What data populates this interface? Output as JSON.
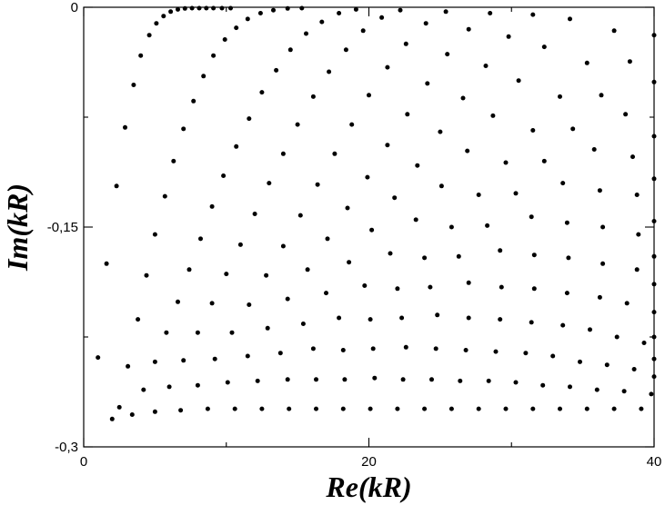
{
  "chart_data": {
    "type": "scatter",
    "xlabel": "Re(kR)",
    "ylabel": "Im(kR)",
    "xlim": [
      0,
      40
    ],
    "ylim": [
      -0.3,
      0
    ],
    "x_ticks": [
      {
        "value": 0,
        "label": "0"
      },
      {
        "value": 20,
        "label": "20"
      },
      {
        "value": 40,
        "label": "40"
      }
    ],
    "y_ticks": [
      {
        "value": 0,
        "label": "0"
      },
      {
        "value": -0.15,
        "label": "-0,15"
      },
      {
        "value": -0.3,
        "label": "-0,3"
      }
    ],
    "x_minor_ticks": [
      10,
      30
    ],
    "y_minor_ticks": [
      -0.075,
      -0.225
    ],
    "grid": false,
    "marker": "dot",
    "color": "#000000",
    "series": [
      {
        "x": [
          1.0,
          1.6,
          2.3,
          2.9,
          3.5,
          4.0,
          4.6,
          5.1,
          5.6,
          6.1,
          6.6,
          7.1,
          7.6,
          8.1,
          8.6,
          9.1,
          9.7,
          10.3
        ],
        "y": [
          -0.239,
          -0.175,
          -0.122,
          -0.082,
          -0.053,
          -0.033,
          -0.019,
          -0.011,
          -0.006,
          -0.003,
          -0.0015,
          -0.0008,
          -0.0004,
          -0.0002,
          -0.0001,
          0,
          0,
          0
        ]
      },
      {
        "x": [
          2.0,
          2.5,
          3.1,
          3.8,
          4.4,
          5.0,
          5.7,
          6.3,
          7.0,
          7.7,
          8.4,
          9.1,
          9.9,
          10.7,
          11.5,
          12.4,
          13.3,
          14.3,
          15.3
        ],
        "y": [
          -0.281,
          -0.273,
          -0.245,
          -0.213,
          -0.183,
          -0.155,
          -0.129,
          -0.105,
          -0.083,
          -0.064,
          -0.047,
          -0.033,
          -0.022,
          -0.014,
          -0.008,
          -0.004,
          -0.002,
          -0.0008,
          -0.0003
        ]
      },
      {
        "x": [
          3.4,
          4.2,
          5.0,
          5.8,
          6.6,
          7.4,
          8.2,
          9.0,
          9.8,
          10.7,
          11.6,
          12.5,
          13.5,
          14.5,
          15.6,
          16.7,
          17.9,
          19.1
        ],
        "y": [
          -0.278,
          -0.261,
          -0.242,
          -0.222,
          -0.201,
          -0.179,
          -0.158,
          -0.136,
          -0.115,
          -0.095,
          -0.076,
          -0.058,
          -0.043,
          -0.029,
          -0.018,
          -0.01,
          -0.004,
          -0.0015
        ]
      },
      {
        "x": [
          5.0,
          6.0,
          7.0,
          8.0,
          9.0,
          10.0,
          11.0,
          12.0,
          13.0,
          14.0,
          15.0,
          16.1,
          17.2,
          18.4,
          19.6,
          20.9,
          22.2
        ],
        "y": [
          -0.276,
          -0.259,
          -0.241,
          -0.222,
          -0.202,
          -0.182,
          -0.162,
          -0.141,
          -0.12,
          -0.1,
          -0.08,
          -0.061,
          -0.044,
          -0.029,
          -0.016,
          -0.007,
          -0.002
        ]
      },
      {
        "x": [
          6.8,
          8.0,
          9.2,
          10.4,
          11.6,
          12.8,
          14.0,
          15.2,
          16.4,
          17.6,
          18.8,
          20.0,
          21.3,
          22.6,
          24.0,
          25.4
        ],
        "y": [
          -0.275,
          -0.258,
          -0.24,
          -0.222,
          -0.203,
          -0.183,
          -0.163,
          -0.142,
          -0.121,
          -0.1,
          -0.08,
          -0.06,
          -0.041,
          -0.025,
          -0.011,
          -0.003
        ]
      },
      {
        "x": [
          8.7,
          10.1,
          11.5,
          12.9,
          14.3,
          15.7,
          17.1,
          18.5,
          19.9,
          21.3,
          22.7,
          24.1,
          25.5,
          27.0,
          28.5
        ],
        "y": [
          -0.274,
          -0.256,
          -0.238,
          -0.219,
          -0.199,
          -0.179,
          -0.158,
          -0.137,
          -0.116,
          -0.094,
          -0.073,
          -0.052,
          -0.032,
          -0.015,
          -0.004
        ]
      },
      {
        "x": [
          10.6,
          12.2,
          13.8,
          15.4,
          17.0,
          18.6,
          20.2,
          21.8,
          23.4,
          25.0,
          26.6,
          28.2,
          29.8,
          31.5
        ],
        "y": [
          -0.274,
          -0.255,
          -0.236,
          -0.216,
          -0.195,
          -0.174,
          -0.152,
          -0.13,
          -0.108,
          -0.085,
          -0.062,
          -0.04,
          -0.02,
          -0.005
        ]
      },
      {
        "x": [
          12.5,
          14.3,
          16.1,
          17.9,
          19.7,
          21.5,
          23.3,
          25.1,
          26.9,
          28.7,
          30.5,
          32.3,
          34.1
        ],
        "y": [
          -0.274,
          -0.254,
          -0.233,
          -0.212,
          -0.19,
          -0.168,
          -0.145,
          -0.122,
          -0.098,
          -0.074,
          -0.05,
          -0.027,
          -0.008
        ]
      },
      {
        "x": [
          14.4,
          16.3,
          18.2,
          20.1,
          22.0,
          23.9,
          25.8,
          27.7,
          29.6,
          31.5,
          33.4,
          35.3,
          37.2
        ],
        "y": [
          -0.274,
          -0.254,
          -0.234,
          -0.213,
          -0.192,
          -0.171,
          -0.15,
          -0.128,
          -0.106,
          -0.084,
          -0.061,
          -0.038,
          -0.016
        ]
      },
      {
        "x": [
          16.3,
          18.3,
          20.3,
          22.3,
          24.3,
          26.3,
          28.3,
          30.3,
          32.3,
          34.3,
          36.3,
          38.3,
          40.0
        ],
        "y": [
          -0.274,
          -0.254,
          -0.233,
          -0.212,
          -0.191,
          -0.17,
          -0.149,
          -0.127,
          -0.105,
          -0.083,
          -0.06,
          -0.037,
          -0.019
        ]
      },
      {
        "x": [
          18.2,
          20.4,
          22.6,
          24.8,
          27.0,
          29.2,
          31.4,
          33.6,
          35.8,
          38.0,
          40.0
        ],
        "y": [
          -0.274,
          -0.253,
          -0.232,
          -0.21,
          -0.188,
          -0.166,
          -0.143,
          -0.12,
          -0.097,
          -0.073,
          -0.051
        ]
      },
      {
        "x": [
          20.1,
          22.4,
          24.7,
          27.0,
          29.3,
          31.6,
          33.9,
          36.2,
          38.5,
          40.0
        ],
        "y": [
          -0.274,
          -0.254,
          -0.233,
          -0.212,
          -0.191,
          -0.169,
          -0.147,
          -0.125,
          -0.102,
          -0.088
        ]
      },
      {
        "x": [
          22.0,
          24.4,
          26.8,
          29.2,
          31.6,
          34.0,
          36.4,
          38.8,
          40.0
        ],
        "y": [
          -0.274,
          -0.254,
          -0.234,
          -0.213,
          -0.192,
          -0.171,
          -0.15,
          -0.128,
          -0.117
        ]
      },
      {
        "x": [
          23.9,
          26.4,
          28.9,
          31.4,
          33.9,
          36.4,
          38.9,
          40.0
        ],
        "y": [
          -0.274,
          -0.255,
          -0.235,
          -0.215,
          -0.195,
          -0.175,
          -0.155,
          -0.146
        ]
      },
      {
        "x": [
          25.8,
          28.4,
          31.0,
          33.6,
          36.2,
          38.8,
          40.0
        ],
        "y": [
          -0.274,
          -0.255,
          -0.236,
          -0.217,
          -0.198,
          -0.179,
          -0.17
        ]
      },
      {
        "x": [
          27.7,
          30.3,
          32.9,
          35.5,
          38.1,
          40.0
        ],
        "y": [
          -0.274,
          -0.256,
          -0.238,
          -0.22,
          -0.202,
          -0.189
        ]
      },
      {
        "x": [
          29.6,
          32.2,
          34.8,
          37.4,
          40.0
        ],
        "y": [
          -0.274,
          -0.258,
          -0.242,
          -0.225,
          -0.208
        ]
      },
      {
        "x": [
          31.5,
          34.1,
          36.7,
          39.3,
          40.0
        ],
        "y": [
          -0.274,
          -0.259,
          -0.244,
          -0.229,
          -0.225
        ]
      },
      {
        "x": [
          33.4,
          36.0,
          38.6,
          40.0
        ],
        "y": [
          -0.274,
          -0.261,
          -0.247,
          -0.24
        ]
      },
      {
        "x": [
          35.3,
          37.9,
          40.0
        ],
        "y": [
          -0.274,
          -0.262,
          -0.252
        ]
      },
      {
        "x": [
          37.2,
          39.8
        ],
        "y": [
          -0.274,
          -0.264
        ]
      },
      {
        "x": [
          39.1
        ],
        "y": [
          -0.274
        ]
      }
    ]
  }
}
